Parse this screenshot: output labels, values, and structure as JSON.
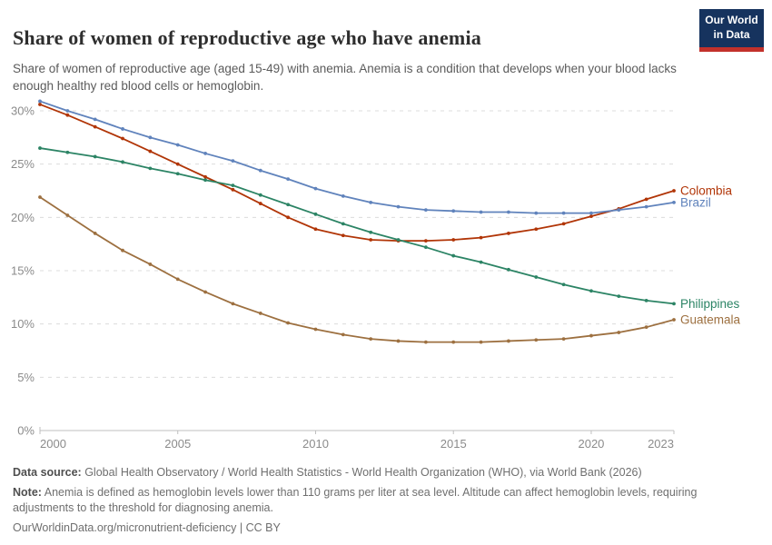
{
  "header": {
    "title": "Share of women of reproductive age who have anemia",
    "subtitle": "Share of women of reproductive age (aged 15-49) with anemia. Anemia is a condition that develops when your blood lacks enough healthy red blood cells or hemoglobin."
  },
  "logo": {
    "line1": "Our World",
    "line2": "in Data",
    "bg_color": "#16335e",
    "stripe_color": "#c2312b"
  },
  "chart_data": {
    "type": "line",
    "title": "Share of women of reproductive age who have anemia",
    "xlabel": "",
    "ylabel": "",
    "x": [
      2000,
      2001,
      2002,
      2003,
      2004,
      2005,
      2006,
      2007,
      2008,
      2009,
      2010,
      2011,
      2012,
      2013,
      2014,
      2015,
      2016,
      2017,
      2018,
      2019,
      2020,
      2021,
      2022,
      2023
    ],
    "series": [
      {
        "name": "Colombia",
        "color": "#B13507",
        "values": [
          30.6,
          29.6,
          28.5,
          27.4,
          26.2,
          25.0,
          23.8,
          22.6,
          21.3,
          20.0,
          18.9,
          18.3,
          17.9,
          17.8,
          17.8,
          17.9,
          18.1,
          18.5,
          18.9,
          19.4,
          20.1,
          20.8,
          21.7,
          22.5
        ]
      },
      {
        "name": "Brazil",
        "color": "#6083BC",
        "values": [
          30.9,
          30.0,
          29.2,
          28.3,
          27.5,
          26.8,
          26.0,
          25.3,
          24.4,
          23.6,
          22.7,
          22.0,
          21.4,
          21.0,
          20.7,
          20.6,
          20.5,
          20.5,
          20.4,
          20.4,
          20.4,
          20.7,
          21.0,
          21.4
        ]
      },
      {
        "name": "Philippines",
        "color": "#2C8465",
        "values": [
          26.5,
          26.1,
          25.7,
          25.2,
          24.6,
          24.1,
          23.5,
          23.0,
          22.1,
          21.2,
          20.3,
          19.4,
          18.6,
          17.9,
          17.2,
          16.4,
          15.8,
          15.1,
          14.4,
          13.7,
          13.1,
          12.6,
          12.2,
          11.9
        ]
      },
      {
        "name": "Guatemala",
        "color": "#9D7040",
        "values": [
          21.9,
          20.2,
          18.5,
          16.9,
          15.6,
          14.2,
          13.0,
          11.9,
          11.0,
          10.1,
          9.5,
          9.0,
          8.6,
          8.4,
          8.3,
          8.3,
          8.3,
          8.4,
          8.5,
          8.6,
          8.9,
          9.2,
          9.7,
          10.4
        ]
      }
    ],
    "yticks": [
      0,
      5,
      10,
      15,
      20,
      25,
      30
    ],
    "ytick_suffix": "%",
    "xticks": [
      2000,
      2005,
      2010,
      2015,
      2020,
      2023
    ],
    "ylim": [
      0,
      31.5
    ],
    "xlim": [
      2000,
      2023
    ],
    "grid": "horizontal-dashed",
    "legend_position": "line-end-labels-right"
  },
  "footer": {
    "datasource_label": "Data source:",
    "datasource_text": " Global Health Observatory / World Health Statistics - World Health Organization (WHO), via World Bank (2026)",
    "note_label": "Note:",
    "note_text": " Anemia is defined as hemoglobin levels lower than 110 grams per liter at sea level. Altitude can affect hemoglobin levels, requiring adjustments to the threshold for diagnosing anemia.",
    "link_text": "OurWorldinData.org/micronutrient-deficiency | CC BY"
  }
}
